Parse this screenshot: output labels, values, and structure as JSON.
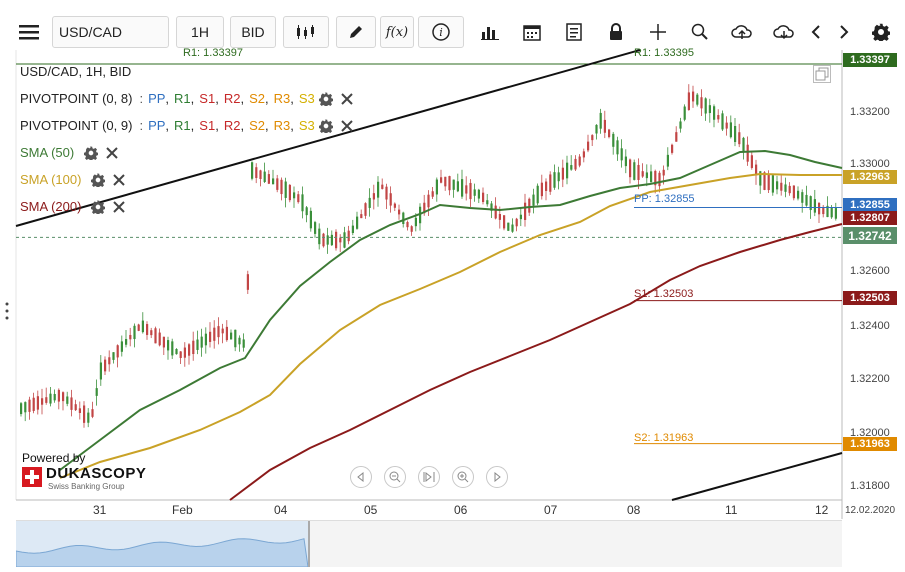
{
  "toolbar": {
    "symbol": "USD/CAD",
    "timeframe": "1H",
    "side": "BID",
    "fx_label": "f(x)",
    "info_label": "i"
  },
  "legend": {
    "title": "USD/CAD, 1H, BID",
    "pivot1": {
      "name": "PIVOTPOINT (0, 8)",
      "sep": ":"
    },
    "pivot2": {
      "name": "PIVOTPOINT (0, 9)",
      "sep": ":"
    },
    "levels": [
      "PP",
      "R1",
      "S1",
      "R2",
      "S2",
      "R3",
      "S3"
    ],
    "level_colors": [
      "#2f6fc0",
      "#2e7d32",
      "#c62828",
      "#c62828",
      "#e08a00",
      "#e08a00",
      "#d4b000"
    ],
    "sma50": "SMA (50)",
    "sma100": "SMA (100)",
    "sma200": "SMA (200)"
  },
  "price_axis": {
    "ticks": [
      "1.33200",
      "1.33000",
      "1.32600",
      "1.32400",
      "1.32200",
      "1.32000",
      "1.31800"
    ],
    "labels": {
      "r1": "1.33397",
      "sma100": "1.32963",
      "pp": "1.32855",
      "sma200": "1.32807",
      "current": "1.32742",
      "s1": "1.32503",
      "s2": "1.31963"
    },
    "label_colors": {
      "r1": "#2e6b1f",
      "sma100": "#c9a227",
      "pp": "#2f6fc0",
      "sma200": "#8b1a1a",
      "current": "#5a8f6a",
      "s1": "#8b1a1a",
      "s2": "#e08a00"
    }
  },
  "chart_labels": {
    "r1_left": "R1: 1.33397",
    "r1_right": "R1: 1.33395",
    "pp": "PP: 1.32855",
    "s1": "S1: 1.32503",
    "s2": "S2: 1.31963"
  },
  "time_axis": [
    "31",
    "Feb",
    "04",
    "05",
    "06",
    "07",
    "08",
    "11",
    "12"
  ],
  "time_axis_date": "12.02.2020",
  "branding": {
    "powered_by": "Powered by",
    "name": "DUKASCOPY",
    "tagline": "Swiss Banking Group"
  },
  "chart_data": {
    "type": "candlestick",
    "symbol": "USD/CAD",
    "timeframe": "1H",
    "ylim": [
      1.3175,
      1.3345
    ],
    "current_price": 1.32742,
    "pivot_levels": {
      "R1": 1.33397,
      "PP": 1.32855,
      "S1": 1.32503,
      "S2": 1.31963
    },
    "sma_last": {
      "SMA50": 1.3298,
      "SMA100": 1.32963,
      "SMA200": 1.32807
    }
  },
  "colors": {
    "sma50": "#3d7a35",
    "sma100": "#c9a227",
    "sma200": "#8b1a1a",
    "bull": "#3a8f3a",
    "bear": "#c24545"
  }
}
